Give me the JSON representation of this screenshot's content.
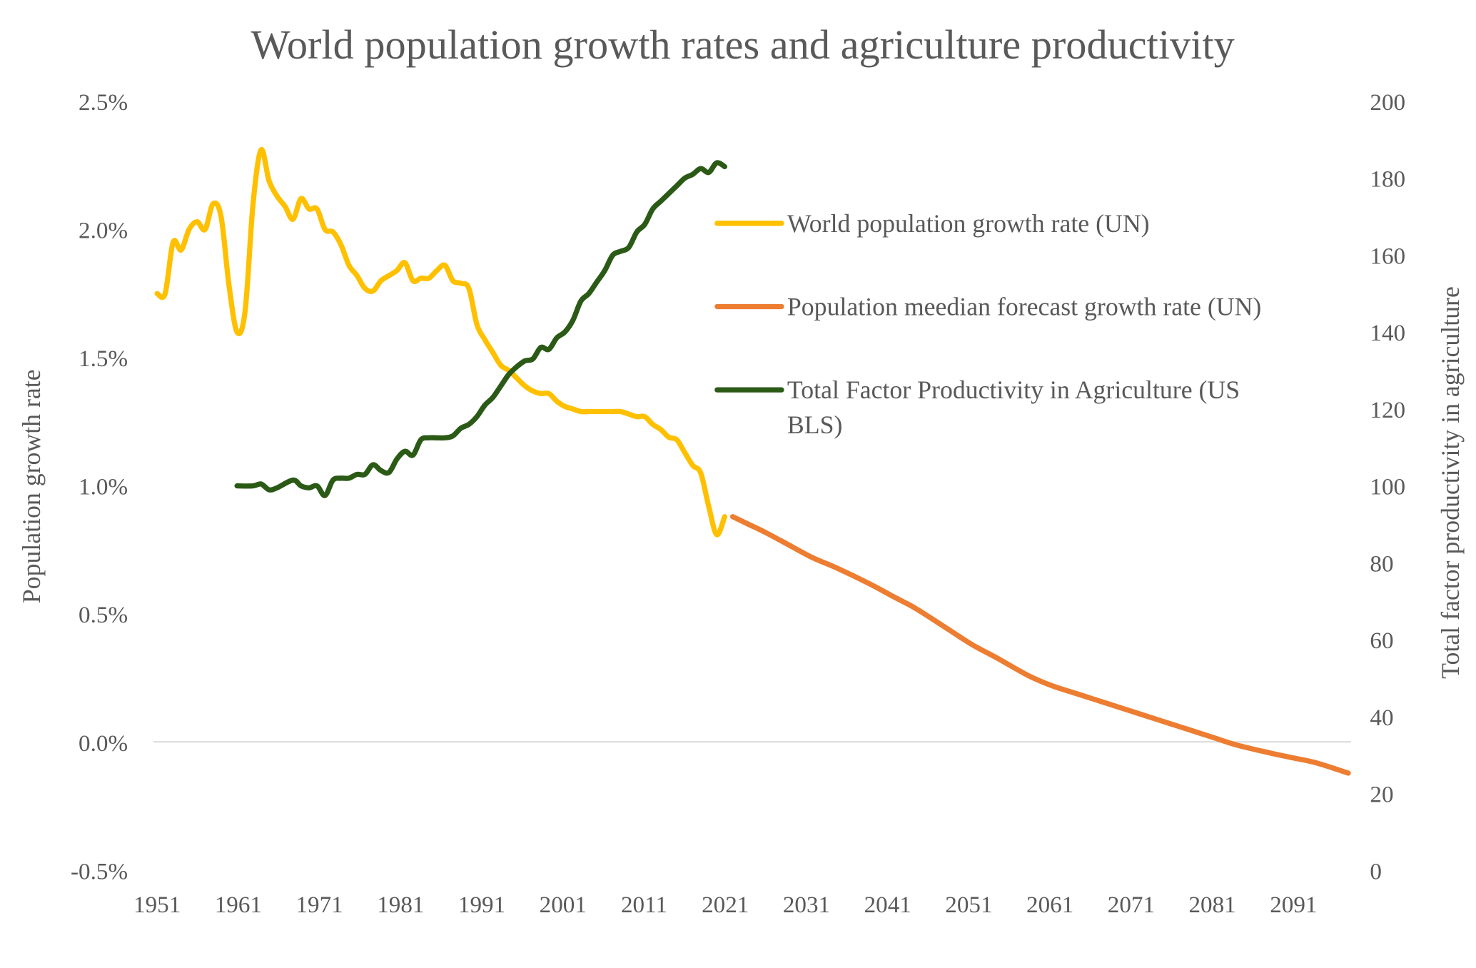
{
  "chart_data": {
    "type": "line",
    "title": "World population growth rates and agriculture productivity",
    "xlabel": "",
    "ylabel": "Population growth rate",
    "y2label": "Total factor productivity in agriculture",
    "x_tick_labels": [
      "1951",
      "1961",
      "1971",
      "1981",
      "1991",
      "2001",
      "2011",
      "2021",
      "2031",
      "2041",
      "2051",
      "2061",
      "2071",
      "2081",
      "2091"
    ],
    "xlim": [
      1951,
      2100
    ],
    "ylim": [
      -0.5,
      2.5
    ],
    "y_ticks": [
      -0.5,
      0.0,
      0.5,
      1.0,
      1.5,
      2.0,
      2.5
    ],
    "y_tick_labels": [
      "-0.5%",
      "0.0%",
      "0.5%",
      "1.0%",
      "1.5%",
      "2.0%",
      "2.5%"
    ],
    "y2lim": [
      0,
      200
    ],
    "y2_ticks": [
      0,
      20,
      40,
      60,
      80,
      100,
      120,
      140,
      160,
      180,
      200
    ],
    "y2_tick_labels": [
      "0",
      "20",
      "40",
      "60",
      "80",
      "100",
      "120",
      "140",
      "160",
      "180",
      "200"
    ],
    "grid": "zero line only",
    "legend_position": "right-center",
    "series": [
      {
        "name": "World population growth rate (UN)",
        "axis": "left",
        "color": "#FFC000",
        "x": [
          1951,
          1952,
          1953,
          1954,
          1955,
          1956,
          1957,
          1958,
          1959,
          1960,
          1961,
          1962,
          1963,
          1964,
          1965,
          1966,
          1967,
          1968,
          1969,
          1970,
          1971,
          1972,
          1973,
          1974,
          1975,
          1976,
          1977,
          1978,
          1979,
          1980,
          1981,
          1982,
          1983,
          1984,
          1985,
          1986,
          1987,
          1988,
          1989,
          1990,
          1991,
          1992,
          1993,
          1994,
          1995,
          1996,
          1997,
          1998,
          1999,
          2000,
          2001,
          2002,
          2003,
          2004,
          2005,
          2006,
          2007,
          2008,
          2009,
          2010,
          2011,
          2012,
          2013,
          2014,
          2015,
          2016,
          2017,
          2018,
          2019,
          2020,
          2021,
          2022
        ],
        "values": [
          1.75,
          1.75,
          1.95,
          1.92,
          2.0,
          2.03,
          2.0,
          2.1,
          2.05,
          1.78,
          1.6,
          1.68,
          2.1,
          2.31,
          2.19,
          2.13,
          2.09,
          2.04,
          2.12,
          2.08,
          2.08,
          2.0,
          1.99,
          1.94,
          1.86,
          1.82,
          1.77,
          1.76,
          1.8,
          1.82,
          1.84,
          1.87,
          1.8,
          1.81,
          1.81,
          1.84,
          1.86,
          1.8,
          1.79,
          1.77,
          1.63,
          1.57,
          1.52,
          1.47,
          1.45,
          1.42,
          1.39,
          1.37,
          1.36,
          1.36,
          1.33,
          1.31,
          1.3,
          1.29,
          1.29,
          1.29,
          1.29,
          1.29,
          1.29,
          1.28,
          1.27,
          1.27,
          1.24,
          1.22,
          1.19,
          1.18,
          1.13,
          1.08,
          1.05,
          0.92,
          0.81,
          0.88
        ]
      },
      {
        "name": "Population meedian forecast growth rate (UN)",
        "axis": "left",
        "color": "#ED7D31",
        "x": [
          2023,
          2025,
          2027,
          2030,
          2033,
          2036,
          2040,
          2043,
          2046,
          2050,
          2053,
          2056,
          2060,
          2063,
          2066,
          2070,
          2073,
          2076,
          2080,
          2083,
          2086,
          2090,
          2093,
          2096,
          2100
        ],
        "values": [
          0.88,
          0.85,
          0.82,
          0.77,
          0.72,
          0.68,
          0.62,
          0.57,
          0.52,
          0.44,
          0.38,
          0.33,
          0.26,
          0.22,
          0.19,
          0.15,
          0.12,
          0.09,
          0.05,
          0.02,
          -0.01,
          -0.04,
          -0.06,
          -0.08,
          -0.12
        ]
      },
      {
        "name": "Total Factor Productivity in Agriculture (US BLS)",
        "axis": "right",
        "color": "#2B5A17",
        "x": [
          1961,
          1963,
          1964,
          1965,
          1966,
          1968,
          1969,
          1970,
          1971,
          1972,
          1973,
          1974,
          1975,
          1976,
          1977,
          1978,
          1979,
          1980,
          1981,
          1982,
          1983,
          1984,
          1985,
          1986,
          1987,
          1988,
          1989,
          1990,
          1991,
          1992,
          1993,
          1994,
          1995,
          1996,
          1997,
          1998,
          1999,
          2000,
          2001,
          2002,
          2003,
          2004,
          2005,
          2006,
          2007,
          2008,
          2009,
          2010,
          2011,
          2012,
          2013,
          2014,
          2015,
          2016,
          2017,
          2018,
          2019,
          2020,
          2021,
          2022
        ],
        "values": [
          100,
          100,
          100.5,
          99,
          99.5,
          101.5,
          100,
          99.5,
          100,
          97.5,
          101.5,
          102,
          102,
          103,
          103,
          105.5,
          104,
          103.5,
          107,
          109,
          108,
          112,
          112.5,
          112.5,
          112.5,
          113,
          115,
          116,
          118,
          121,
          123,
          126,
          129,
          131,
          132.5,
          133,
          136,
          135.5,
          138.5,
          140,
          143,
          148,
          150,
          153,
          156,
          160,
          161,
          162,
          166,
          168,
          172,
          174,
          176,
          178,
          180,
          181,
          182.5,
          181.5,
          184,
          183
        ]
      }
    ]
  }
}
